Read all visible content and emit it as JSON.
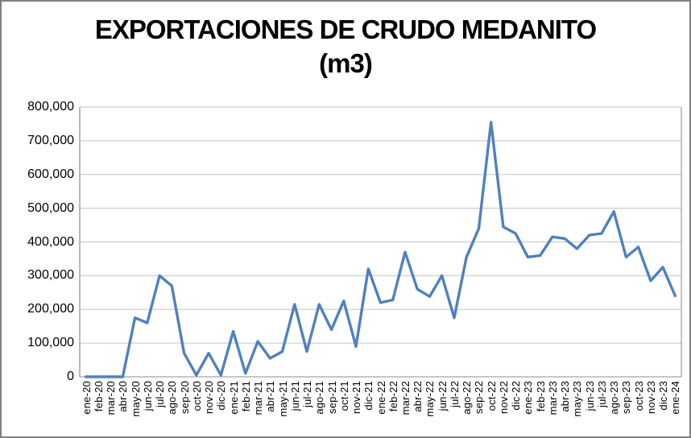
{
  "window": {
    "background_color": "#FFFFFF",
    "border_color": "#808080"
  },
  "title": {
    "line1": "EXPORTACIONES DE CRUDO MEDANITO",
    "line2": "(m3)",
    "color": "#000000"
  },
  "chart_data": {
    "type": "line",
    "title": "EXPORTACIONES DE CRUDO MEDANITO (m3)",
    "xlabel": "",
    "ylabel": "",
    "ylim": [
      0,
      800000
    ],
    "y_tick_step": 100000,
    "y_tick_labels": [
      "0",
      "100,000",
      "200,000",
      "300,000",
      "400,000",
      "500,000",
      "600,000",
      "700,000",
      "800,000"
    ],
    "grid": true,
    "legend_position": "none",
    "line_color": "#4F81BD",
    "gridline_color": "#C3C3C3",
    "axis_color": "#8C8C8C",
    "categories": [
      "ene-20",
      "feb-20",
      "mar-20",
      "abr-20",
      "may-20",
      "jun-20",
      "jul-20",
      "ago-20",
      "sep-20",
      "oct-20",
      "nov-20",
      "dic-20",
      "ene-21",
      "feb-21",
      "mar-21",
      "abr-21",
      "may-21",
      "jun-21",
      "jul-21",
      "ago-21",
      "sep-21",
      "oct-21",
      "nov-21",
      "dic-21",
      "ene-22",
      "feb-22",
      "mar-22",
      "abr-22",
      "may-22",
      "jun-22",
      "jul-22",
      "ago-22",
      "sep-22",
      "oct-22",
      "nov-22",
      "dic-22",
      "ene-23",
      "feb-23",
      "mar-23",
      "abr-23",
      "may-23",
      "jun-23",
      "jul-23",
      "ago-23",
      "sep-23",
      "oct-23",
      "nov-23",
      "dic-23",
      "ene-24"
    ],
    "series": [
      {
        "name": "Exportaciones de crudo Medanito (m3)",
        "values": [
          0,
          0,
          0,
          0,
          175000,
          160000,
          300000,
          270000,
          70000,
          5000,
          70000,
          5000,
          135000,
          10000,
          105000,
          55000,
          75000,
          215000,
          75000,
          215000,
          140000,
          225000,
          90000,
          320000,
          220000,
          228000,
          370000,
          260000,
          238000,
          300000,
          175000,
          355000,
          440000,
          755000,
          445000,
          425000,
          355000,
          360000,
          415000,
          410000,
          380000,
          420000,
          425000,
          490000,
          355000,
          385000,
          285000,
          325000,
          240000
        ]
      }
    ]
  }
}
